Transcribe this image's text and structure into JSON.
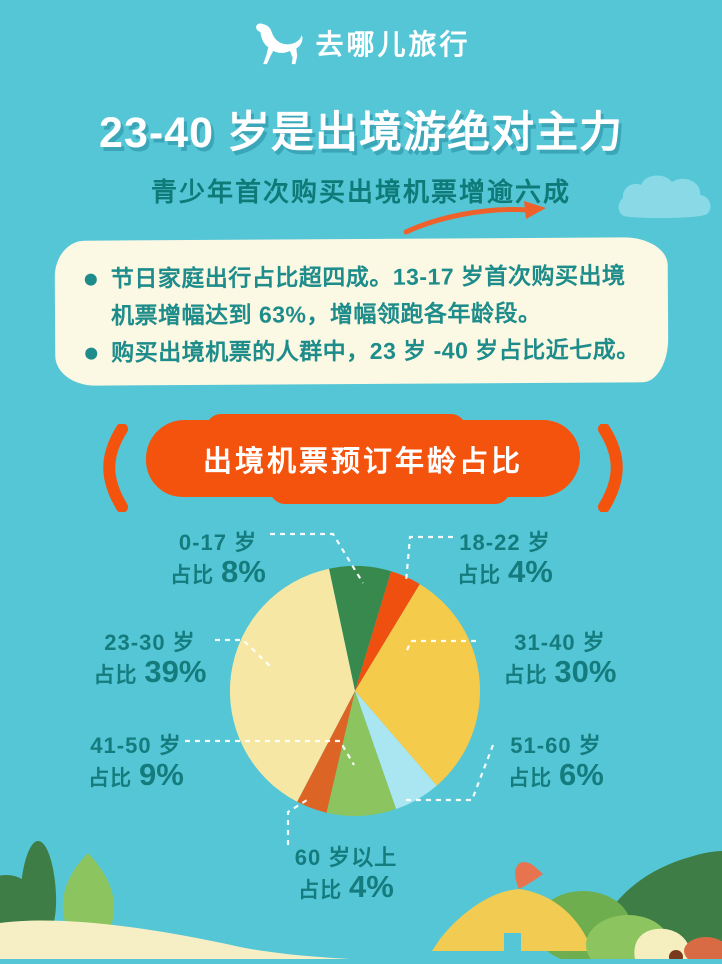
{
  "header": {
    "brand": "去哪儿旅行"
  },
  "title": "23-40 岁是出境游绝对主力",
  "subtitle": "青少年首次购买出境机票增逾六成",
  "highlights": {
    "bullets": [
      "节日家庭出行占比超四成。13-17 岁首次购买出境机票增幅达到 63%，增幅领跑各年龄段。",
      "购买出境机票的人群中，23 岁 -40 岁占比近七成。"
    ]
  },
  "banner": {
    "label": "出境机票预订年龄占比"
  },
  "chart_data": {
    "type": "pie",
    "title": "出境机票预订年龄占比",
    "value_prefix": "占比",
    "value_suffix": "%",
    "start_angle_deg": -12,
    "direction": "clockwise",
    "slices": [
      {
        "label": "0-17 岁",
        "value": 8,
        "color": "#37894E"
      },
      {
        "label": "18-22 岁",
        "value": 4,
        "color": "#F0500F"
      },
      {
        "label": "31-40 岁",
        "value": 30,
        "color": "#F5CB4B"
      },
      {
        "label": "51-60 岁",
        "value": 6,
        "color": "#A9E6F1"
      },
      {
        "label": "41-50 岁",
        "value": 9,
        "color": "#8CC45F"
      },
      {
        "label": "60 岁以上",
        "value": 4,
        "color": "#DC6526"
      },
      {
        "label": "23-30 岁",
        "value": 39,
        "color": "#F6E7A4"
      }
    ]
  },
  "colors": {
    "background": "#55C6D6",
    "accent_orange": "#F4530E",
    "text_teal": "#157C7E",
    "card_cream": "#FBF8E3",
    "title_shadow": "#3AA6B8",
    "cloud": "#89DAE6",
    "leader_line": "#FFFFFF"
  },
  "icons": {
    "logo": "camel-icon",
    "arrow": "swoosh-arrow-icon",
    "cloud": "cloud-icon"
  }
}
